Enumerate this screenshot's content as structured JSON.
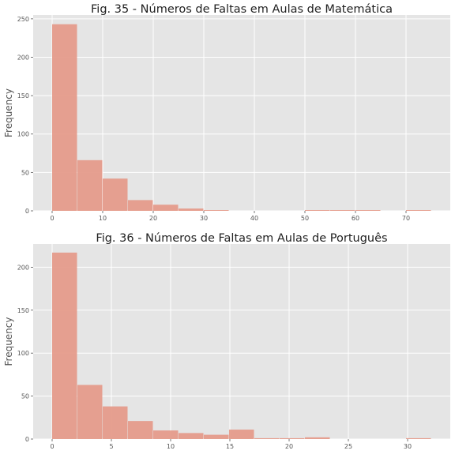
{
  "chart_data": [
    {
      "type": "bar",
      "title": "Fig. 35 - Números de Faltas em Aulas de Matemática",
      "xlabel": "",
      "ylabel": "Frequency",
      "bin_edges": [
        0,
        5,
        10,
        15,
        20,
        25,
        30,
        35,
        40,
        45,
        50,
        55,
        60,
        65,
        70,
        75
      ],
      "values": [
        243,
        66,
        42,
        14,
        8,
        3,
        1,
        0,
        0,
        0,
        1,
        1,
        1,
        0,
        1
      ],
      "xlim": [
        -3.75,
        78.75
      ],
      "ylim": [
        0,
        255
      ],
      "xticks": [
        0,
        10,
        20,
        30,
        40,
        50,
        60,
        70
      ],
      "yticks": [
        0,
        50,
        100,
        150,
        200,
        250
      ],
      "grid": true,
      "color": "#E59B8B"
    },
    {
      "type": "bar",
      "title": "Fig. 36 - Números de Faltas em Aulas de Português",
      "xlabel": "",
      "ylabel": "Frequency",
      "bin_edges": [
        0,
        2.1333,
        4.2667,
        6.4,
        8.5333,
        10.6667,
        12.8,
        14.9333,
        17.0667,
        19.2,
        21.3333,
        23.4667,
        25.6,
        27.7333,
        29.8667,
        32
      ],
      "values": [
        217,
        63,
        38,
        21,
        10,
        7,
        5,
        11,
        1,
        1,
        2,
        0,
        0,
        0,
        1
      ],
      "xlim": [
        -1.6,
        33.6
      ],
      "ylim": [
        0,
        227
      ],
      "xticks": [
        0,
        5,
        10,
        15,
        20,
        25,
        30
      ],
      "yticks": [
        0,
        50,
        100,
        150,
        200
      ],
      "grid": true,
      "color": "#E59B8B"
    }
  ]
}
